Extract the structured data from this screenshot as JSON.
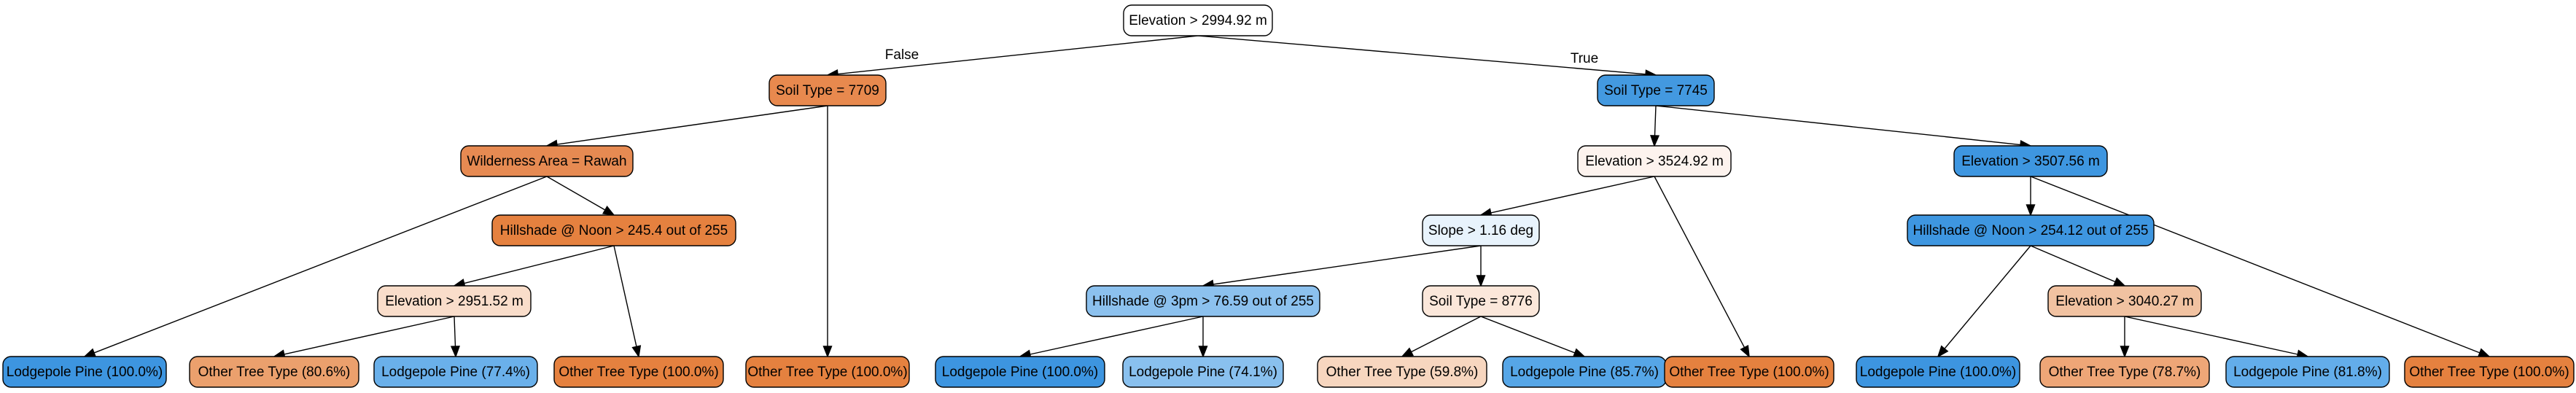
{
  "tree": {
    "nodes": [
      {
        "id": "n0",
        "label": "Elevation > 2994.92 m",
        "color": "#ffffff"
      },
      {
        "id": "n1",
        "label": "Soil Type = 7709",
        "color": "#e8894e"
      },
      {
        "id": "n2",
        "label": "Soil Type = 7745",
        "color": "#4399e0"
      },
      {
        "id": "n3",
        "label": "Wilderness Area = Rawah",
        "color": "#e68a52"
      },
      {
        "id": "n4",
        "label": "Lodgepole Pine (100.0%)",
        "color": "#3d95e0"
      },
      {
        "id": "n5",
        "label": "Hillshade @ Noon > 245.4 out of 255",
        "color": "#e5813f"
      },
      {
        "id": "n6",
        "label": "Elevation > 3524.92 m",
        "color": "#fdf3ee"
      },
      {
        "id": "n7",
        "label": "Elevation > 3507.56 m",
        "color": "#3e96e0"
      },
      {
        "id": "n8",
        "label": "Slope > 1.16 deg",
        "color": "#e8f3fc"
      },
      {
        "id": "n9",
        "label": "Hillshade @ Noon > 254.12 out of 255",
        "color": "#3e96e0"
      },
      {
        "id": "n10",
        "label": "Elevation > 2951.52 m",
        "color": "#f9ddca"
      },
      {
        "id": "n11",
        "label": "Hillshade @ 3pm > 76.59 out of 255",
        "color": "#8cc1ee"
      },
      {
        "id": "n12",
        "label": "Soil Type = 8776",
        "color": "#fbe7da"
      },
      {
        "id": "n13",
        "label": "Elevation > 3040.27 m",
        "color": "#f1c2a1"
      },
      {
        "id": "n14",
        "label": "Lodgepole Pine (100.0%)",
        "color": "#3d95e0"
      },
      {
        "id": "n15",
        "label": "Other Tree Type (80.6%)",
        "color": "#eba06d"
      },
      {
        "id": "n16",
        "label": "Lodgepole Pine (77.4%)",
        "color": "#6ab0ea"
      },
      {
        "id": "n17",
        "label": "Other Tree Type (100.0%)",
        "color": "#e5813f"
      },
      {
        "id": "n18",
        "label": "Other Tree Type (100.0%)",
        "color": "#e5813f"
      },
      {
        "id": "n19",
        "label": "Lodgepole Pine (74.1%)",
        "color": "#89c0ee"
      },
      {
        "id": "n20",
        "label": "Other Tree Type (59.8%)",
        "color": "#f7d6bf"
      },
      {
        "id": "n21",
        "label": "Lodgepole Pine (85.7%)",
        "color": "#56a6e7"
      },
      {
        "id": "n22",
        "label": "Other Tree Type (100.0%)",
        "color": "#e5813f"
      },
      {
        "id": "n23",
        "label": "Lodgepole Pine (100.0%)",
        "color": "#3d95e0"
      },
      {
        "id": "n24",
        "label": "Other Tree Type (78.7%)",
        "color": "#eea677"
      },
      {
        "id": "n25",
        "label": "Lodgepole Pine (81.8%)",
        "color": "#63adea"
      },
      {
        "id": "n26",
        "label": "Other Tree Type (100.0%)",
        "color": "#e5813f"
      }
    ],
    "edges": [
      {
        "from": "n0",
        "to": "n1",
        "label": "False"
      },
      {
        "from": "n0",
        "to": "n2",
        "label": "True"
      },
      {
        "from": "n1",
        "to": "n3"
      },
      {
        "from": "n1",
        "to": "n18"
      },
      {
        "from": "n3",
        "to": "n14"
      },
      {
        "from": "n3",
        "to": "n5"
      },
      {
        "from": "n5",
        "to": "n10"
      },
      {
        "from": "n5",
        "to": "n17"
      },
      {
        "from": "n10",
        "to": "n15"
      },
      {
        "from": "n10",
        "to": "n16"
      },
      {
        "from": "n2",
        "to": "n6"
      },
      {
        "from": "n2",
        "to": "n7"
      },
      {
        "from": "n6",
        "to": "n8"
      },
      {
        "from": "n6",
        "to": "n22"
      },
      {
        "from": "n8",
        "to": "n11"
      },
      {
        "from": "n8",
        "to": "n12"
      },
      {
        "from": "n11",
        "to": "n19"
      },
      {
        "from": "n11",
        "to": "n4"
      },
      {
        "from": "n12",
        "to": "n20"
      },
      {
        "from": "n12",
        "to": "n21"
      },
      {
        "from": "n7",
        "to": "n9"
      },
      {
        "from": "n7",
        "to": "n26"
      },
      {
        "from": "n9",
        "to": "n23"
      },
      {
        "from": "n9",
        "to": "n13"
      },
      {
        "from": "n13",
        "to": "n24"
      },
      {
        "from": "n13",
        "to": "n25"
      }
    ]
  }
}
